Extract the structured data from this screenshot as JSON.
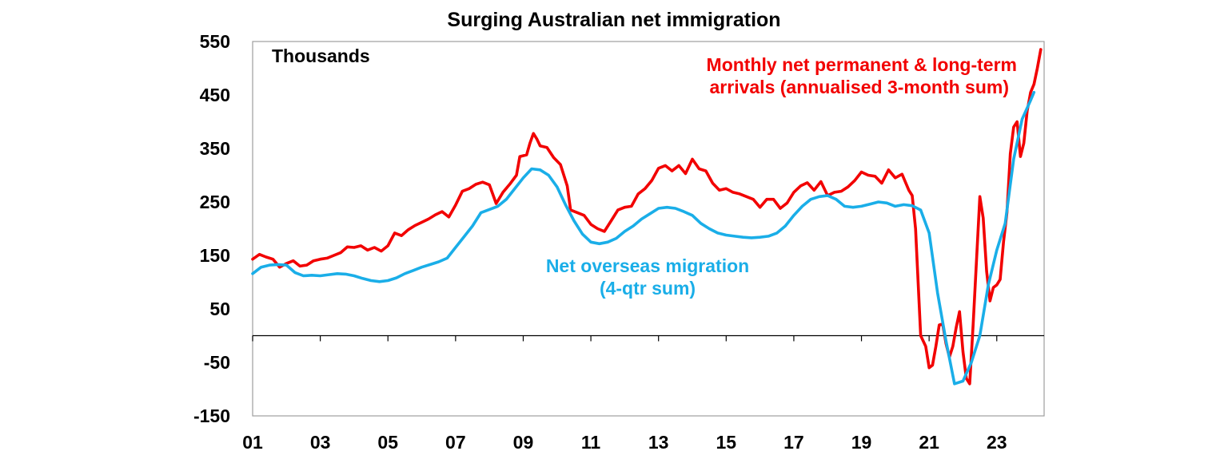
{
  "chart_data": {
    "type": "line",
    "title": "Surging Australian net immigration",
    "unit_label": "Thousands",
    "xlabel": "",
    "ylabel": "",
    "ylim": [
      -150,
      550
    ],
    "xlim": [
      2001.0,
      2024.4
    ],
    "y_ticks": [
      550,
      450,
      350,
      250,
      150,
      50,
      -50,
      -150
    ],
    "x_ticks": [
      {
        "label": "01",
        "year": 2001
      },
      {
        "label": "03",
        "year": 2003
      },
      {
        "label": "05",
        "year": 2005
      },
      {
        "label": "07",
        "year": 2007
      },
      {
        "label": "09",
        "year": 2009
      },
      {
        "label": "11",
        "year": 2011
      },
      {
        "label": "13",
        "year": 2013
      },
      {
        "label": "15",
        "year": 2015
      },
      {
        "label": "17",
        "year": 2017
      },
      {
        "label": "19",
        "year": 2019
      },
      {
        "label": "21",
        "year": 2021
      },
      {
        "label": "23",
        "year": 2023
      }
    ],
    "grid": false,
    "colors": {
      "monthly": "#f20000",
      "nom": "#1aaee8",
      "axis": "#000000",
      "frame": "#9e9e9e"
    },
    "annotations": {
      "monthly": [
        "Monthly net permanent & long-term",
        "arrivals (annualised 3-month sum)"
      ],
      "nom": [
        "Net overseas migration",
        "(4-qtr sum)"
      ]
    },
    "series": [
      {
        "name": "Monthly net permanent & long-term arrivals (annualised 3-month sum)",
        "color": "#f20000",
        "points": [
          [
            2001.0,
            143
          ],
          [
            2001.2,
            152
          ],
          [
            2001.4,
            147
          ],
          [
            2001.6,
            143
          ],
          [
            2001.8,
            128
          ],
          [
            2002.0,
            135
          ],
          [
            2002.2,
            140
          ],
          [
            2002.4,
            130
          ],
          [
            2002.6,
            132
          ],
          [
            2002.8,
            140
          ],
          [
            2003.0,
            143
          ],
          [
            2003.2,
            145
          ],
          [
            2003.4,
            150
          ],
          [
            2003.6,
            155
          ],
          [
            2003.8,
            166
          ],
          [
            2004.0,
            165
          ],
          [
            2004.2,
            168
          ],
          [
            2004.4,
            160
          ],
          [
            2004.6,
            165
          ],
          [
            2004.8,
            158
          ],
          [
            2005.0,
            168
          ],
          [
            2005.2,
            192
          ],
          [
            2005.4,
            187
          ],
          [
            2005.6,
            198
          ],
          [
            2005.8,
            206
          ],
          [
            2006.0,
            212
          ],
          [
            2006.2,
            218
          ],
          [
            2006.4,
            226
          ],
          [
            2006.6,
            232
          ],
          [
            2006.8,
            222
          ],
          [
            2007.0,
            244
          ],
          [
            2007.2,
            270
          ],
          [
            2007.4,
            275
          ],
          [
            2007.6,
            283
          ],
          [
            2007.8,
            287
          ],
          [
            2008.0,
            282
          ],
          [
            2008.2,
            247
          ],
          [
            2008.4,
            268
          ],
          [
            2008.6,
            283
          ],
          [
            2008.8,
            300
          ],
          [
            2008.9,
            335
          ],
          [
            2009.1,
            338
          ],
          [
            2009.2,
            360
          ],
          [
            2009.3,
            378
          ],
          [
            2009.4,
            368
          ],
          [
            2009.5,
            355
          ],
          [
            2009.7,
            352
          ],
          [
            2009.9,
            333
          ],
          [
            2010.1,
            320
          ],
          [
            2010.3,
            280
          ],
          [
            2010.4,
            235
          ],
          [
            2010.6,
            230
          ],
          [
            2010.8,
            225
          ],
          [
            2011.0,
            208
          ],
          [
            2011.2,
            200
          ],
          [
            2011.4,
            195
          ],
          [
            2011.6,
            215
          ],
          [
            2011.8,
            235
          ],
          [
            2012.0,
            240
          ],
          [
            2012.2,
            242
          ],
          [
            2012.4,
            265
          ],
          [
            2012.6,
            275
          ],
          [
            2012.8,
            290
          ],
          [
            2013.0,
            313
          ],
          [
            2013.2,
            318
          ],
          [
            2013.4,
            308
          ],
          [
            2013.6,
            318
          ],
          [
            2013.8,
            303
          ],
          [
            2014.0,
            330
          ],
          [
            2014.2,
            312
          ],
          [
            2014.4,
            308
          ],
          [
            2014.6,
            285
          ],
          [
            2014.8,
            272
          ],
          [
            2015.0,
            275
          ],
          [
            2015.2,
            268
          ],
          [
            2015.4,
            265
          ],
          [
            2015.6,
            260
          ],
          [
            2015.8,
            255
          ],
          [
            2016.0,
            240
          ],
          [
            2016.2,
            255
          ],
          [
            2016.4,
            255
          ],
          [
            2016.6,
            238
          ],
          [
            2016.8,
            248
          ],
          [
            2017.0,
            268
          ],
          [
            2017.2,
            280
          ],
          [
            2017.4,
            286
          ],
          [
            2017.6,
            272
          ],
          [
            2017.8,
            288
          ],
          [
            2018.0,
            262
          ],
          [
            2018.2,
            268
          ],
          [
            2018.4,
            270
          ],
          [
            2018.6,
            278
          ],
          [
            2018.8,
            290
          ],
          [
            2019.0,
            306
          ],
          [
            2019.2,
            300
          ],
          [
            2019.4,
            298
          ],
          [
            2019.6,
            285
          ],
          [
            2019.8,
            310
          ],
          [
            2020.0,
            295
          ],
          [
            2020.2,
            302
          ],
          [
            2020.4,
            272
          ],
          [
            2020.5,
            262
          ],
          [
            2020.6,
            200
          ],
          [
            2020.75,
            0
          ],
          [
            2020.9,
            -20
          ],
          [
            2021.0,
            -60
          ],
          [
            2021.1,
            -55
          ],
          [
            2021.2,
            -20
          ],
          [
            2021.3,
            20
          ],
          [
            2021.4,
            22
          ],
          [
            2021.5,
            -15
          ],
          [
            2021.6,
            -40
          ],
          [
            2021.7,
            -20
          ],
          [
            2021.8,
            15
          ],
          [
            2021.9,
            45
          ],
          [
            2022.0,
            -30
          ],
          [
            2022.1,
            -80
          ],
          [
            2022.2,
            -90
          ],
          [
            2022.3,
            20
          ],
          [
            2022.4,
            140
          ],
          [
            2022.5,
            260
          ],
          [
            2022.6,
            220
          ],
          [
            2022.7,
            120
          ],
          [
            2022.8,
            65
          ],
          [
            2022.9,
            90
          ],
          [
            2023.0,
            95
          ],
          [
            2023.1,
            105
          ],
          [
            2023.2,
            175
          ],
          [
            2023.3,
            230
          ],
          [
            2023.4,
            340
          ],
          [
            2023.5,
            390
          ],
          [
            2023.6,
            400
          ],
          [
            2023.7,
            335
          ],
          [
            2023.8,
            360
          ],
          [
            2023.9,
            420
          ],
          [
            2024.0,
            455
          ],
          [
            2024.1,
            470
          ],
          [
            2024.2,
            500
          ],
          [
            2024.3,
            535
          ]
        ]
      },
      {
        "name": "Net overseas migration (4-qtr sum)",
        "color": "#1aaee8",
        "points": [
          [
            2001.0,
            116
          ],
          [
            2001.25,
            128
          ],
          [
            2001.5,
            132
          ],
          [
            2001.75,
            133
          ],
          [
            2002.0,
            132
          ],
          [
            2002.25,
            118
          ],
          [
            2002.5,
            112
          ],
          [
            2002.75,
            113
          ],
          [
            2003.0,
            112
          ],
          [
            2003.25,
            114
          ],
          [
            2003.5,
            116
          ],
          [
            2003.75,
            115
          ],
          [
            2004.0,
            112
          ],
          [
            2004.25,
            107
          ],
          [
            2004.5,
            103
          ],
          [
            2004.75,
            101
          ],
          [
            2005.0,
            103
          ],
          [
            2005.25,
            108
          ],
          [
            2005.5,
            116
          ],
          [
            2005.75,
            122
          ],
          [
            2006.0,
            128
          ],
          [
            2006.25,
            133
          ],
          [
            2006.5,
            138
          ],
          [
            2006.75,
            145
          ],
          [
            2007.0,
            165
          ],
          [
            2007.25,
            185
          ],
          [
            2007.5,
            205
          ],
          [
            2007.75,
            230
          ],
          [
            2008.0,
            236
          ],
          [
            2008.25,
            242
          ],
          [
            2008.5,
            255
          ],
          [
            2008.75,
            275
          ],
          [
            2009.0,
            295
          ],
          [
            2009.25,
            312
          ],
          [
            2009.5,
            310
          ],
          [
            2009.75,
            300
          ],
          [
            2010.0,
            278
          ],
          [
            2010.25,
            245
          ],
          [
            2010.5,
            215
          ],
          [
            2010.75,
            190
          ],
          [
            2011.0,
            175
          ],
          [
            2011.25,
            172
          ],
          [
            2011.5,
            175
          ],
          [
            2011.75,
            182
          ],
          [
            2012.0,
            195
          ],
          [
            2012.25,
            205
          ],
          [
            2012.5,
            218
          ],
          [
            2012.75,
            228
          ],
          [
            2013.0,
            238
          ],
          [
            2013.25,
            240
          ],
          [
            2013.5,
            238
          ],
          [
            2013.75,
            232
          ],
          [
            2014.0,
            225
          ],
          [
            2014.25,
            210
          ],
          [
            2014.5,
            200
          ],
          [
            2014.75,
            192
          ],
          [
            2015.0,
            188
          ],
          [
            2015.25,
            186
          ],
          [
            2015.5,
            184
          ],
          [
            2015.75,
            183
          ],
          [
            2016.0,
            184
          ],
          [
            2016.25,
            186
          ],
          [
            2016.5,
            192
          ],
          [
            2016.75,
            205
          ],
          [
            2017.0,
            225
          ],
          [
            2017.25,
            242
          ],
          [
            2017.5,
            255
          ],
          [
            2017.75,
            260
          ],
          [
            2018.0,
            262
          ],
          [
            2018.25,
            255
          ],
          [
            2018.5,
            242
          ],
          [
            2018.75,
            240
          ],
          [
            2019.0,
            242
          ],
          [
            2019.25,
            246
          ],
          [
            2019.5,
            250
          ],
          [
            2019.75,
            248
          ],
          [
            2020.0,
            242
          ],
          [
            2020.25,
            245
          ],
          [
            2020.5,
            243
          ],
          [
            2020.75,
            235
          ],
          [
            2021.0,
            192
          ],
          [
            2021.25,
            80
          ],
          [
            2021.5,
            -10
          ],
          [
            2021.75,
            -90
          ],
          [
            2022.0,
            -85
          ],
          [
            2022.25,
            -50
          ],
          [
            2022.5,
            0
          ],
          [
            2022.75,
            95
          ],
          [
            2023.0,
            160
          ],
          [
            2023.25,
            210
          ],
          [
            2023.5,
            330
          ],
          [
            2023.75,
            405
          ],
          [
            2024.0,
            440
          ],
          [
            2024.1,
            455
          ]
        ]
      }
    ]
  }
}
